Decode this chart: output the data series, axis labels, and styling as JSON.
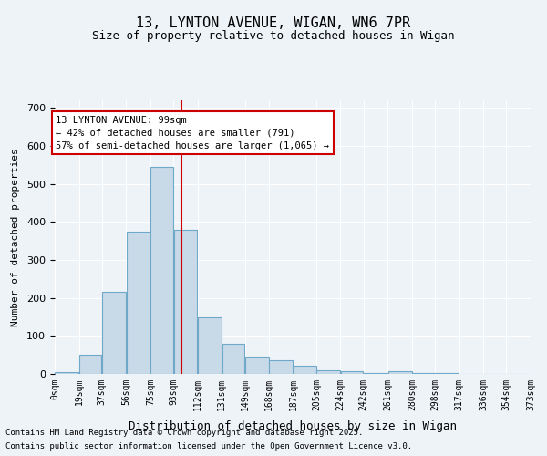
{
  "title1": "13, LYNTON AVENUE, WIGAN, WN6 7PR",
  "title2": "Size of property relative to detached houses in Wigan",
  "xlabel": "Distribution of detached houses by size in Wigan",
  "ylabel": "Number of detached properties",
  "bin_labels": [
    "0sqm",
    "19sqm",
    "37sqm",
    "56sqm",
    "75sqm",
    "93sqm",
    "112sqm",
    "131sqm",
    "149sqm",
    "168sqm",
    "187sqm",
    "205sqm",
    "224sqm",
    "242sqm",
    "261sqm",
    "280sqm",
    "298sqm",
    "317sqm",
    "336sqm",
    "354sqm",
    "373sqm"
  ],
  "bin_edges": [
    0,
    19,
    37,
    56,
    75,
    93,
    112,
    131,
    149,
    168,
    187,
    205,
    224,
    242,
    261,
    280,
    298,
    317,
    336,
    354,
    373
  ],
  "bar_heights": [
    5,
    50,
    215,
    375,
    545,
    380,
    150,
    80,
    45,
    35,
    22,
    10,
    8,
    2,
    8,
    2,
    2,
    0,
    0,
    0
  ],
  "bar_color": "#c8d9e8",
  "bar_edgecolor": "#6fa8c8",
  "red_line_x": 99,
  "ylim": [
    0,
    720
  ],
  "yticks": [
    0,
    100,
    200,
    300,
    400,
    500,
    600,
    700
  ],
  "annotation_text": "13 LYNTON AVENUE: 99sqm\n← 42% of detached houses are smaller (791)\n57% of semi-detached houses are larger (1,065) →",
  "annotation_box_color": "#ffffff",
  "annotation_box_edgecolor": "#cc0000",
  "footer1": "Contains HM Land Registry data © Crown copyright and database right 2025.",
  "footer2": "Contains public sector information licensed under the Open Government Licence v3.0.",
  "background_color": "#eef3f8",
  "plot_background": "#eef3f8"
}
